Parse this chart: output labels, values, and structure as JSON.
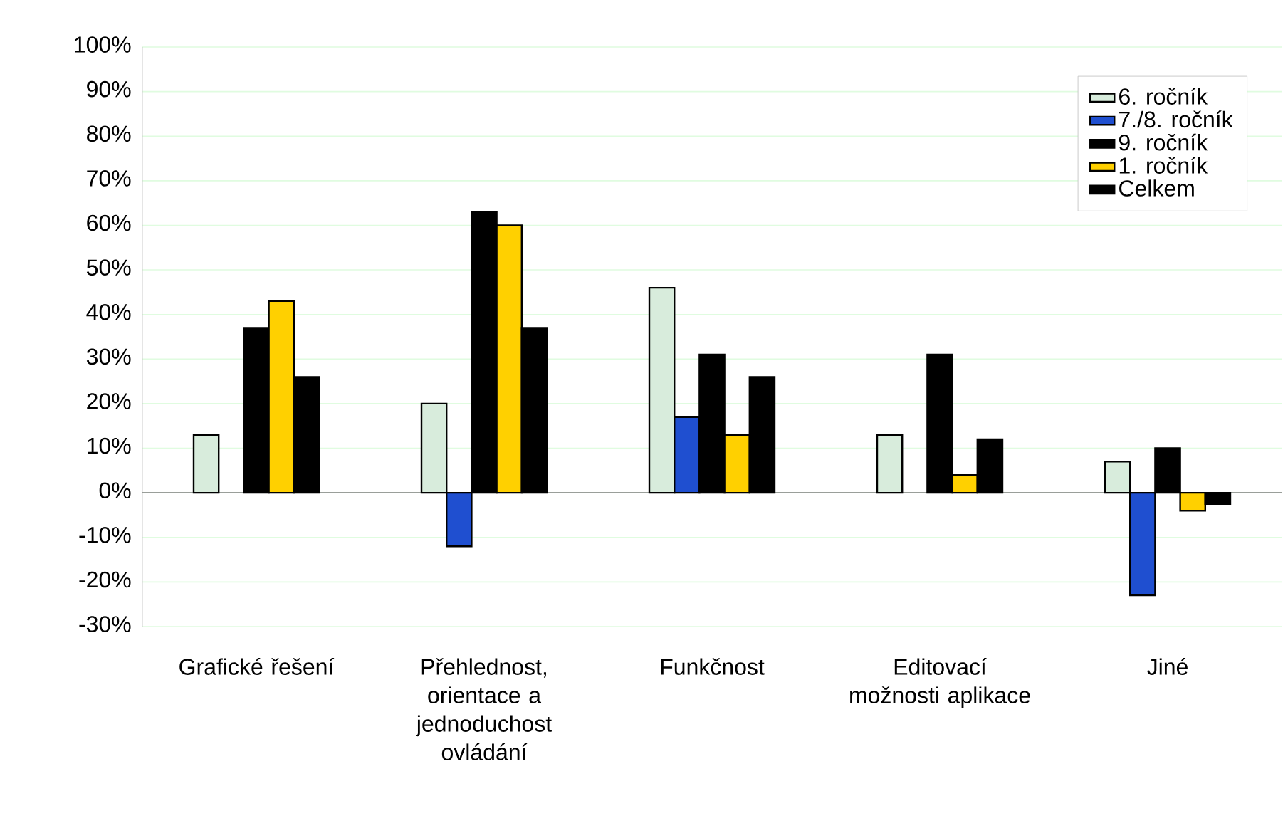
{
  "chart_data": {
    "type": "bar",
    "categories": [
      "Grafické řešení",
      "Přehlednost, orientace a jednoduchost ovládání",
      "Funkčnost",
      "Editovací možnosti aplikace",
      "Jiné"
    ],
    "series": [
      {
        "name": "6. ročník",
        "color": "#d8ecdc",
        "values": [
          13,
          20,
          46,
          13,
          7
        ]
      },
      {
        "name": "7./8. ročník",
        "color": "#1f4fd0",
        "values": [
          null,
          -12,
          17,
          null,
          -23
        ]
      },
      {
        "name": "9. ročník",
        "color": "#000000",
        "values": [
          37,
          63,
          31,
          31,
          10
        ]
      },
      {
        "name": "1. ročník",
        "color": "#ffd000",
        "values": [
          43,
          60,
          13,
          4,
          -4
        ]
      },
      {
        "name": "Celkem",
        "color": "#000000",
        "values": [
          26,
          37,
          26,
          12,
          -2.5
        ]
      }
    ],
    "ylim": [
      -30,
      100
    ],
    "yticks": [
      {
        "value": -30,
        "label": "-30%"
      },
      {
        "value": -20,
        "label": "-20%"
      },
      {
        "value": -10,
        "label": "-10%"
      },
      {
        "value": 0,
        "label": "0%"
      },
      {
        "value": 10,
        "label": "10%"
      },
      {
        "value": 20,
        "label": "20%"
      },
      {
        "value": 30,
        "label": "30%"
      },
      {
        "value": 40,
        "label": "40%"
      },
      {
        "value": 50,
        "label": "50%"
      },
      {
        "value": 60,
        "label": "60%"
      },
      {
        "value": 70,
        "label": "70%"
      },
      {
        "value": 80,
        "label": "80%"
      },
      {
        "value": 90,
        "label": "90%"
      },
      {
        "value": 100,
        "label": "100%"
      }
    ],
    "grid": "y",
    "legend": "top right"
  }
}
